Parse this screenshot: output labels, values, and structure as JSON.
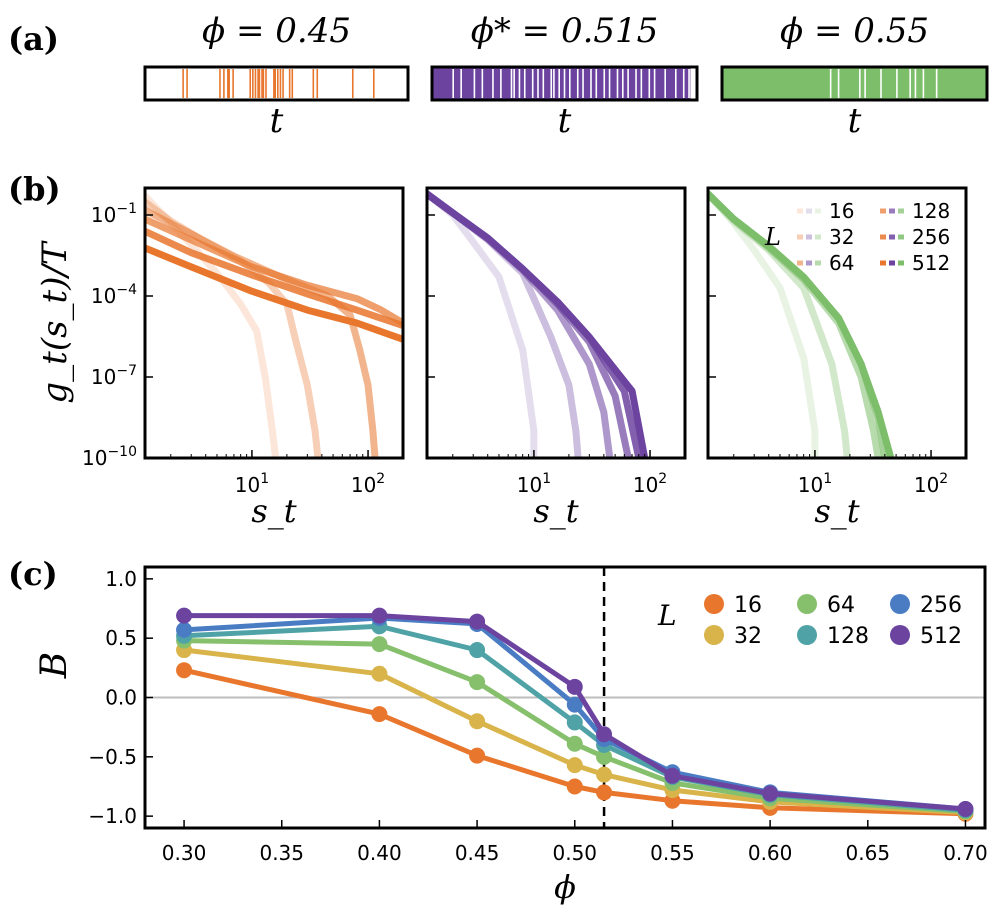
{
  "panel_labels": {
    "a": "(a)",
    "b": "(b)",
    "c": "(c)"
  },
  "colors": {
    "orange": "#e8762d",
    "purple": "#6c44a0",
    "green": "#7dbe6b",
    "L16": "#e8762d",
    "L32": "#d9b44a",
    "L64": "#86c06d",
    "L128": "#4fa3a6",
    "L256": "#4a7cc4",
    "L512": "#6c44a0"
  },
  "chart_data": [
    {
      "id": "a",
      "type": "event-raster",
      "xlabel": "t",
      "strips": [
        {
          "title": "ϕ = 0.45",
          "color_key": "orange",
          "background": "white",
          "events": [
            0.145,
            0.16,
            0.285,
            0.3,
            0.315,
            0.32,
            0.335,
            0.4,
            0.41,
            0.42,
            0.43,
            0.435,
            0.445,
            0.45,
            0.46,
            0.49,
            0.495,
            0.505,
            0.515,
            0.525,
            0.55,
            0.56,
            0.64,
            0.655,
            0.79,
            0.87
          ]
        },
        {
          "title": "ϕ* = 0.515",
          "color_key": "purple",
          "background": "white",
          "fill": "dense-purple",
          "events": [
            0.08,
            0.11,
            0.16,
            0.19,
            0.23,
            0.26,
            0.3,
            0.31,
            0.33,
            0.35,
            0.38,
            0.4,
            0.42,
            0.45,
            0.46,
            0.48,
            0.5,
            0.52,
            0.55,
            0.57,
            0.6,
            0.62,
            0.65,
            0.67,
            0.7,
            0.72,
            0.74,
            0.77,
            0.79,
            0.82,
            0.84,
            0.88,
            0.92,
            0.95,
            0.97
          ]
        },
        {
          "title": "ϕ = 0.55",
          "color_key": "green",
          "background": "green",
          "events": [
            0.41,
            0.44,
            0.52,
            0.54,
            0.6,
            0.66,
            0.71,
            0.73,
            0.76,
            0.81
          ]
        }
      ]
    },
    {
      "id": "b",
      "type": "line",
      "scale": "log-log",
      "ylabel": "g_t(s_t)/T",
      "xlabel": "s_t",
      "xlim": [
        1.2,
        200
      ],
      "ylim": [
        1e-10,
        1.0
      ],
      "xticks": [
        {
          "value": 10,
          "label": "10",
          "sup": "1"
        },
        {
          "value": 100,
          "label": "10",
          "sup": "2"
        }
      ],
      "yticks": [
        {
          "value": 0.1,
          "label": "10",
          "sup": "−1"
        },
        {
          "value": 0.0001,
          "label": "10",
          "sup": "−4"
        },
        {
          "value": 1e-07,
          "label": "10",
          "sup": "−7"
        },
        {
          "value": 1e-10,
          "label": "10",
          "sup": "−10"
        }
      ],
      "legend": {
        "title": "L",
        "labels": [
          "16",
          "32",
          "64",
          "128",
          "256",
          "512"
        ],
        "placement": "top-right of third subplot"
      },
      "subplots": [
        {
          "color_key": "orange",
          "series": [
            {
              "name": "16",
              "opacity": 0.18,
              "x": [
                1.2,
                2,
                3,
                5,
                8,
                11,
                13,
                15,
                16,
                16
              ],
              "y": [
                0.5,
                0.05,
                0.008,
                0.0007,
                5e-05,
                5e-06,
                1e-07,
                1e-09,
                1e-10,
                1e-10
              ]
            },
            {
              "name": "32",
              "opacity": 0.35,
              "x": [
                1.2,
                2,
                4,
                8,
                14,
                20,
                24,
                30,
                35,
                37
              ],
              "y": [
                0.3,
                0.06,
                0.01,
                0.002,
                0.0003,
                5e-05,
                2e-06,
                5e-08,
                1e-09,
                1e-10
              ]
            },
            {
              "name": "64",
              "opacity": 0.55,
              "x": [
                1.2,
                3,
                7,
                20,
                45,
                70,
                85,
                100,
                110,
                115
              ],
              "y": [
                0.15,
                0.02,
                0.003,
                0.0004,
                0.0001,
                2e-05,
                1e-06,
                5e-08,
                1e-09,
                1e-10
              ]
            },
            {
              "name": "128",
              "opacity": 0.7,
              "x": [
                1.2,
                3,
                10,
                30,
                80,
                130,
                200
              ],
              "y": [
                0.07,
                0.012,
                0.0012,
                0.00025,
                8e-05,
                3e-05,
                1e-05
              ]
            },
            {
              "name": "256",
              "opacity": 0.85,
              "x": [
                1.2,
                3,
                10,
                30,
                80,
                200
              ],
              "y": [
                0.025,
                0.004,
                0.0006,
                0.00012,
                3e-05,
                8e-06
              ]
            },
            {
              "name": "512",
              "opacity": 1.0,
              "x": [
                1.2,
                3,
                10,
                30,
                80,
                200
              ],
              "y": [
                0.006,
                0.0012,
                0.00015,
                3e-05,
                1e-05,
                2.5e-06
              ]
            }
          ]
        },
        {
          "color_key": "purple",
          "series": [
            {
              "name": "16",
              "opacity": 0.18,
              "x": [
                1.2,
                2,
                3,
                5,
                8,
                10,
                10
              ],
              "y": [
                0.6,
                0.1,
                0.01,
                0.0005,
                1e-06,
                1e-09,
                1e-10
              ]
            },
            {
              "name": "32",
              "opacity": 0.35,
              "x": [
                1.2,
                2,
                4,
                8,
                14,
                20,
                23,
                24
              ],
              "y": [
                0.6,
                0.12,
                0.012,
                0.0007,
                3e-06,
                5e-08,
                1e-09,
                1e-10
              ]
            },
            {
              "name": "64",
              "opacity": 0.55,
              "x": [
                1.2,
                2,
                4,
                8,
                16,
                30,
                40,
                45
              ],
              "y": [
                0.6,
                0.12,
                0.013,
                0.0009,
                3e-05,
                3e-07,
                5e-09,
                1e-10
              ]
            },
            {
              "name": "128",
              "opacity": 0.7,
              "x": [
                1.2,
                2,
                4,
                8,
                16,
                30,
                50,
                65
              ],
              "y": [
                0.6,
                0.12,
                0.014,
                0.001,
                5e-05,
                2e-06,
                2e-08,
                1e-10
              ]
            },
            {
              "name": "256",
              "opacity": 0.85,
              "x": [
                1.2,
                2,
                4,
                8,
                16,
                30,
                60,
                80
              ],
              "y": [
                0.6,
                0.12,
                0.014,
                0.001,
                6e-05,
                3e-06,
                3e-08,
                1e-10
              ]
            },
            {
              "name": "512",
              "opacity": 1.0,
              "x": [
                1.2,
                2,
                4,
                8,
                16,
                30,
                70,
                90
              ],
              "y": [
                0.6,
                0.12,
                0.014,
                0.001,
                6e-05,
                3e-06,
                3e-08,
                1e-10
              ]
            }
          ]
        },
        {
          "color_key": "green",
          "series": [
            {
              "name": "16",
              "opacity": 0.18,
              "x": [
                1.2,
                2,
                3,
                5,
                8,
                10,
                10
              ],
              "y": [
                0.6,
                0.05,
                0.005,
                0.0002,
                5e-07,
                1e-09,
                1e-10
              ]
            },
            {
              "name": "32",
              "opacity": 0.35,
              "x": [
                1.2,
                2,
                4,
                8,
                14,
                18,
                19
              ],
              "y": [
                0.6,
                0.06,
                0.005,
                0.0002,
                3e-07,
                1e-09,
                1e-10
              ]
            },
            {
              "name": "64",
              "opacity": 0.55,
              "x": [
                1.2,
                2,
                4,
                8,
                16,
                25,
                32,
                35
              ],
              "y": [
                0.6,
                0.07,
                0.006,
                0.0004,
                1e-05,
                1e-07,
                1e-09,
                1e-10
              ]
            },
            {
              "name": "128",
              "opacity": 0.7,
              "x": [
                1.2,
                2,
                4,
                8,
                16,
                25,
                35,
                40
              ],
              "y": [
                0.6,
                0.07,
                0.007,
                0.0005,
                1.5e-05,
                3e-07,
                3e-09,
                1e-10
              ]
            },
            {
              "name": "256",
              "opacity": 0.85,
              "x": [
                1.2,
                2,
                4,
                8,
                16,
                25,
                35,
                45
              ],
              "y": [
                0.6,
                0.07,
                0.007,
                0.0005,
                1.5e-05,
                3e-07,
                5e-09,
                1e-10
              ]
            },
            {
              "name": "512",
              "opacity": 1.0,
              "x": [
                1.2,
                2,
                4,
                8,
                16,
                25,
                35,
                45
              ],
              "y": [
                0.6,
                0.07,
                0.007,
                0.0005,
                1.5e-05,
                3e-07,
                5e-09,
                1e-10
              ]
            }
          ]
        }
      ]
    },
    {
      "id": "c",
      "type": "line",
      "xlabel": "ϕ",
      "ylabel": "B",
      "xlim": [
        0.28,
        0.71
      ],
      "ylim": [
        -1.1,
        1.1
      ],
      "xticks": [
        0.3,
        0.35,
        0.4,
        0.45,
        0.5,
        0.55,
        0.6,
        0.65,
        0.7
      ],
      "xtick_labels": [
        "0.30",
        "0.35",
        "0.40",
        "0.45",
        "0.50",
        "0.55",
        "0.60",
        "0.65",
        "0.70"
      ],
      "yticks": [
        1.0,
        0.5,
        0.0,
        -0.5,
        -1.0
      ],
      "ytick_labels": [
        "1.0",
        "0.5",
        "0.0",
        "−0.5",
        "−1.0"
      ],
      "hline": 0.0,
      "vline": 0.515,
      "legend": {
        "title": "L",
        "placement": "top-right"
      },
      "x": [
        0.3,
        0.4,
        0.45,
        0.5,
        0.515,
        0.55,
        0.6,
        0.7
      ],
      "series": [
        {
          "name": "16",
          "color_key": "L16",
          "values": [
            0.23,
            -0.14,
            -0.49,
            -0.75,
            -0.8,
            -0.87,
            -0.93,
            -0.98
          ]
        },
        {
          "name": "32",
          "color_key": "L32",
          "values": [
            0.4,
            0.2,
            -0.2,
            -0.57,
            -0.65,
            -0.78,
            -0.88,
            -0.97
          ]
        },
        {
          "name": "64",
          "color_key": "L64",
          "values": [
            0.48,
            0.45,
            0.13,
            -0.39,
            -0.5,
            -0.72,
            -0.85,
            -0.96
          ]
        },
        {
          "name": "128",
          "color_key": "L128",
          "values": [
            0.52,
            0.6,
            0.4,
            -0.21,
            -0.4,
            -0.67,
            -0.82,
            -0.95
          ]
        },
        {
          "name": "256",
          "color_key": "L256",
          "values": [
            0.57,
            0.67,
            0.62,
            -0.06,
            -0.35,
            -0.63,
            -0.8,
            -0.94
          ]
        },
        {
          "name": "512",
          "color_key": "L512",
          "values": [
            0.69,
            0.69,
            0.64,
            0.09,
            -0.31,
            -0.66,
            -0.81,
            -0.94
          ]
        }
      ]
    }
  ]
}
